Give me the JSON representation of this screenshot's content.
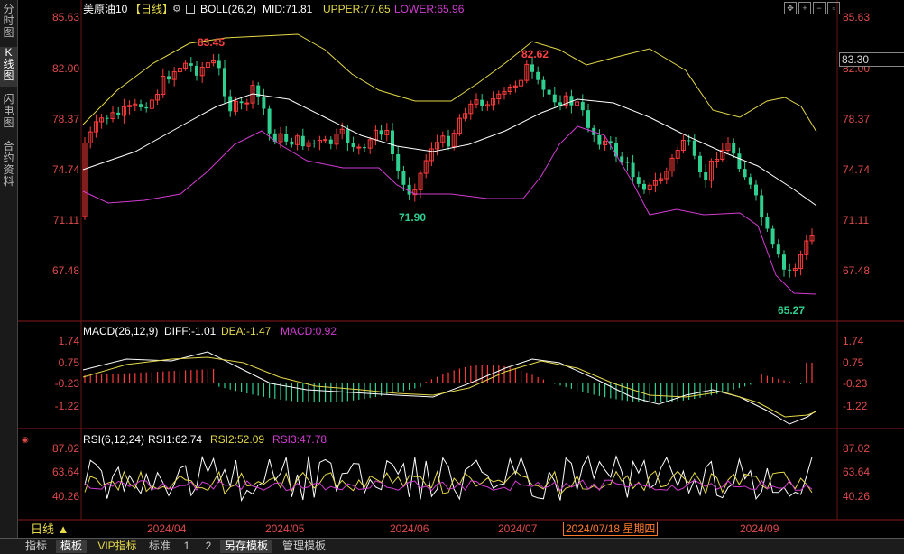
{
  "sidebar": {
    "tabs": [
      {
        "label": "分时图"
      },
      {
        "label": "K线图"
      },
      {
        "label": "闪电图"
      },
      {
        "label": "合约资料"
      }
    ]
  },
  "main_panel": {
    "symbol": "美原油10",
    "period_tag": "【日线】",
    "indicator": "BOLL(26,2)",
    "mid_label": "MID:71.81",
    "upper_label": "UPPER:77.65",
    "lower_label": "LOWER:65.96",
    "price_ticks": [
      "85.63",
      "82.00",
      "78.37",
      "74.74",
      "71.11",
      "67.48"
    ],
    "current_price": "83.30",
    "annotation_high1": "83.45",
    "annotation_high2": "82.62",
    "annotation_low1": "71.90",
    "annotation_low2": "65.27"
  },
  "macd_panel": {
    "title": "MACD(26,12,9)",
    "diff_label": "DIFF:-1.01",
    "dea_label": "DEA:-1.47",
    "macd_label": "MACD:0.92",
    "ticks": [
      "1.74",
      "0.75",
      "-0.23",
      "-1.22"
    ]
  },
  "rsi_panel": {
    "title": "RSI(6,12,24)",
    "rsi1_label": "RSI1:62.74",
    "rsi2_label": "RSI2:52.09",
    "rsi3_label": "RSI3:47.78",
    "ticks": [
      "87.02",
      "63.64",
      "40.26"
    ]
  },
  "x_axis": {
    "period_label": "日线 ▲",
    "months": [
      "2024/04",
      "2024/05",
      "2024/06",
      "2024/07",
      "2024/09"
    ],
    "cursor_date": "2024/07/18 星期四"
  },
  "bottom_tabs": [
    "指标",
    "模板",
    "VIP指标",
    "标准",
    "1",
    "2",
    "另存模板",
    "管理模板"
  ],
  "colors": {
    "up": "#ff3b3b",
    "down": "#2fcf8f",
    "axis_red": "#e04a4a",
    "yellow": "#e6d94a",
    "magenta": "#d23cd2",
    "white": "#ffffff"
  }
}
